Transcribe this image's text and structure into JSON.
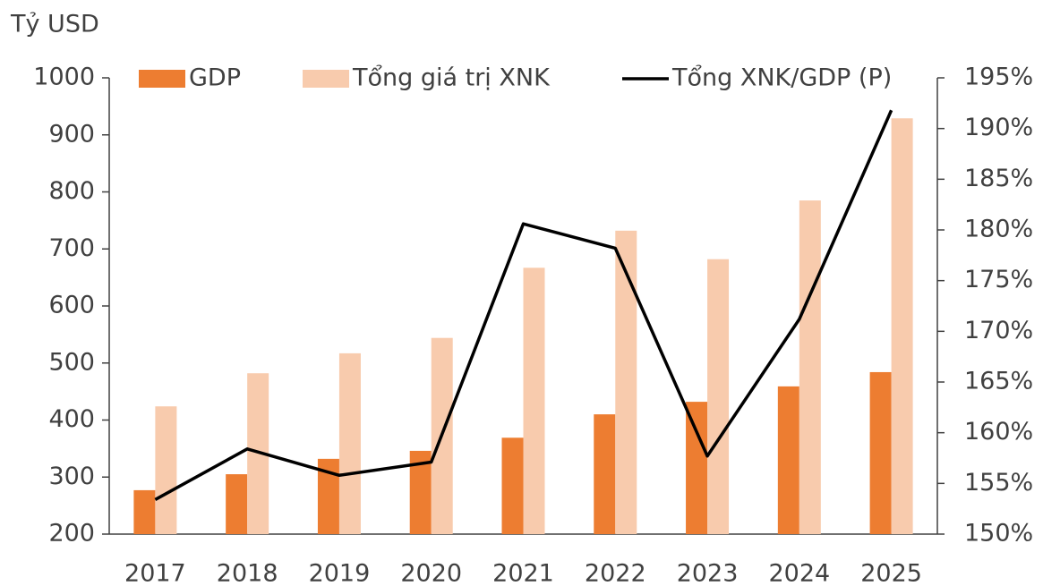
{
  "chart_data": {
    "type": "bar_line",
    "y_axis_label": "Tỷ USD",
    "categories": [
      "2017",
      "2018",
      "2019",
      "2020",
      "2021",
      "2022",
      "2023",
      "2024",
      "2025"
    ],
    "series": [
      {
        "name": "GDP",
        "type": "bar",
        "color": "#ed7d31",
        "values": [
          277,
          305,
          332,
          346,
          369,
          410,
          432,
          459,
          484
        ]
      },
      {
        "name": "Tổng giá trị XNK",
        "type": "bar",
        "color": "#f8cbad",
        "values": [
          424,
          482,
          517,
          544,
          667,
          732,
          682,
          785,
          929
        ]
      },
      {
        "name": "Tổng XNK/GDP (P)",
        "type": "line",
        "axis": "y2",
        "color": "#000000",
        "values": [
          153.4,
          158.4,
          155.8,
          157.1,
          180.6,
          178.2,
          157.7,
          171.2,
          191.8
        ]
      }
    ],
    "ylim": [
      200,
      1000
    ],
    "yticks": [
      200,
      300,
      400,
      500,
      600,
      700,
      800,
      900,
      1000
    ],
    "y2lim": [
      150,
      195
    ],
    "y2ticks": [
      {
        "value": 150,
        "label": "150%"
      },
      {
        "value": 155,
        "label": "155%"
      },
      {
        "value": 160,
        "label": "160%"
      },
      {
        "value": 165,
        "label": "165%"
      },
      {
        "value": 170,
        "label": "170%"
      },
      {
        "value": 175,
        "label": "175%"
      },
      {
        "value": 180,
        "label": "180%"
      },
      {
        "value": 185,
        "label": "185%"
      },
      {
        "value": 190,
        "label": "190%"
      },
      {
        "value": 195,
        "label": "195%"
      }
    ],
    "legend": "top"
  }
}
